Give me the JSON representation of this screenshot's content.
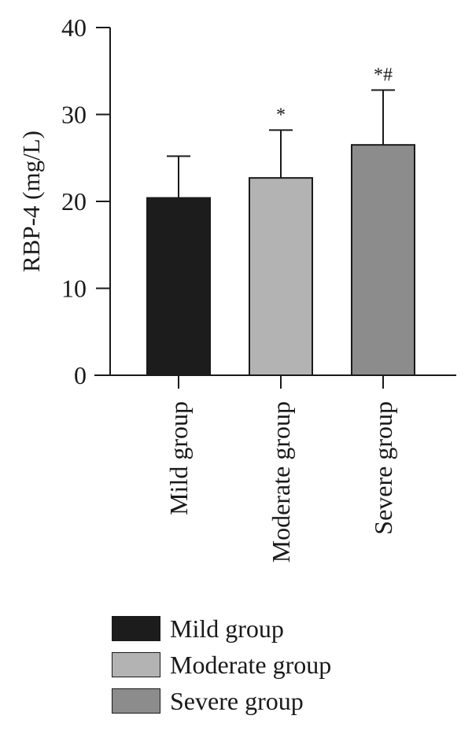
{
  "chart_data": {
    "type": "bar",
    "ylabel": "RBP-4 (mg/L)",
    "ylim": [
      0,
      40
    ],
    "yticks": [
      0,
      10,
      20,
      30,
      40
    ],
    "categories": [
      "Mild group",
      "Moderate group",
      "Severe group"
    ],
    "values": [
      20.4,
      22.7,
      26.5
    ],
    "errors": [
      4.8,
      5.5,
      6.3
    ],
    "annotations": [
      "",
      "*",
      "*#"
    ],
    "colors": [
      "#1c1c1c",
      "#b3b3b3",
      "#8c8c8c"
    ],
    "legend": [
      "Mild group",
      "Moderate group",
      "Severe group"
    ],
    "legend_position": "bottom",
    "grid": false
  }
}
